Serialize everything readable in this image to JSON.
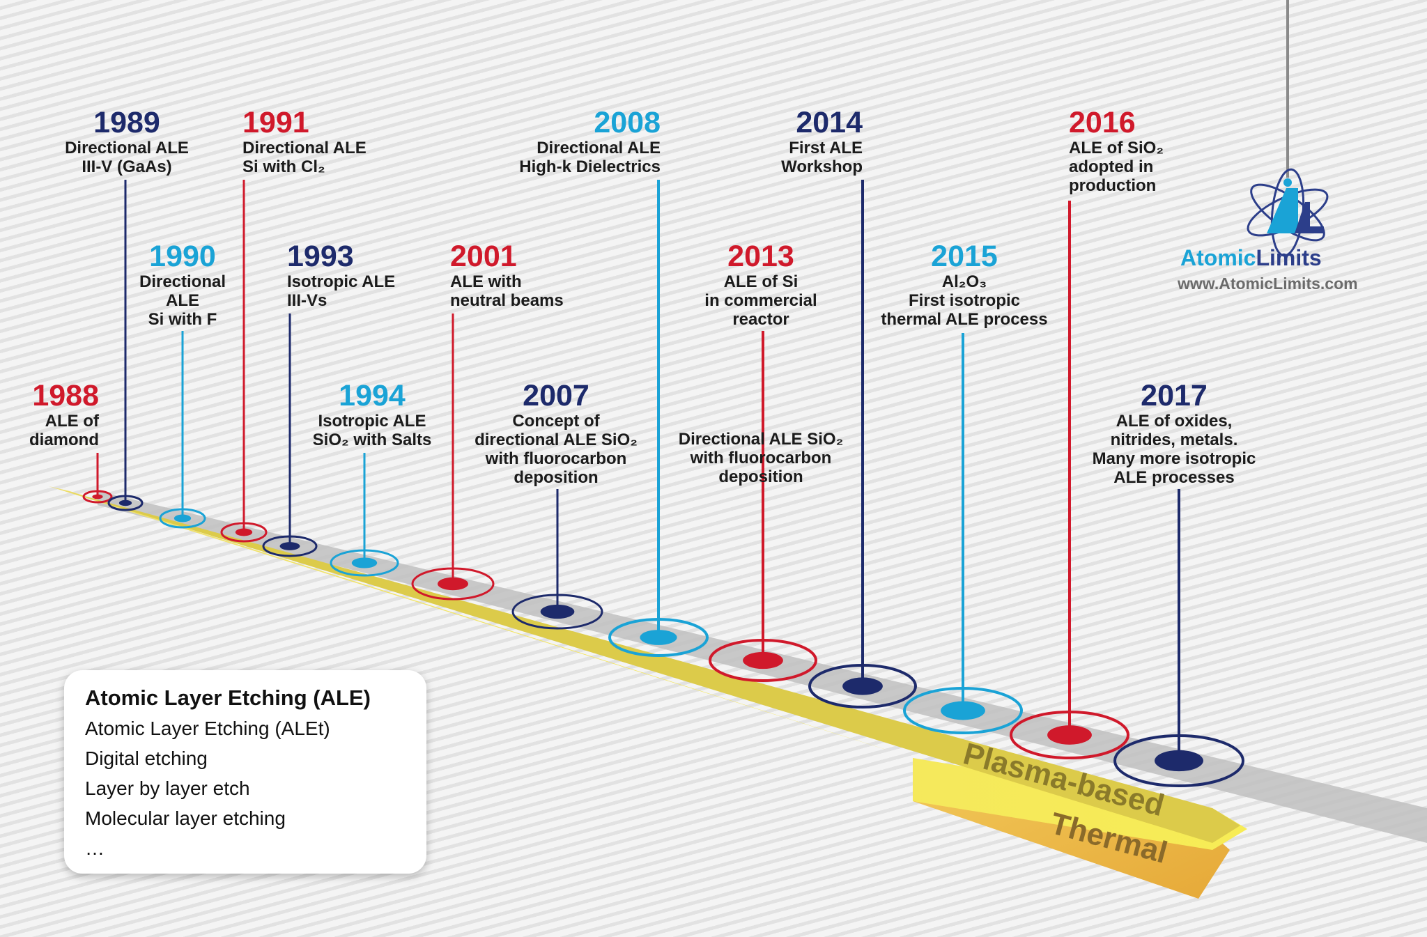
{
  "events": [
    {
      "year": "1988",
      "desc": "ALE of\ndiamond",
      "color": "red"
    },
    {
      "year": "1989",
      "desc": "Directional ALE\nIII-V (GaAs)",
      "color": "navy"
    },
    {
      "year": "1990",
      "desc": "Directional\nALE\nSi with F",
      "color": "cyan"
    },
    {
      "year": "1991",
      "desc": "Directional ALE\nSi with Cl₂",
      "color": "red"
    },
    {
      "year": "1993",
      "desc": "Isotropic ALE\nIII-Vs",
      "color": "navy"
    },
    {
      "year": "1994",
      "desc": "Isotropic ALE\nSiO₂ with Salts",
      "color": "cyan"
    },
    {
      "year": "2001",
      "desc": "ALE with\nneutral beams",
      "color": "red"
    },
    {
      "year": "2007",
      "desc": "Concept of\ndirectional ALE SiO₂\nwith fluorocarbon\ndeposition",
      "color": "navy"
    },
    {
      "year": "2008",
      "desc": "Directional ALE\nHigh-k Dielectrics",
      "color": "cyan"
    },
    {
      "year": "2013",
      "desc": "ALE of Si\nin commercial\nreactor",
      "color": "red"
    },
    {
      "year": "",
      "desc": "Directional ALE SiO₂\nwith fluorocarbon\ndeposition",
      "color": "red"
    },
    {
      "year": "2014",
      "desc": "First ALE\nWorkshop",
      "color": "navy"
    },
    {
      "year": "2015",
      "desc": "Al₂O₃\nFirst isotropic\nthermal ALE process",
      "color": "cyan"
    },
    {
      "year": "2016",
      "desc": "ALE of SiO₂\nadopted in\nproduction",
      "color": "red"
    },
    {
      "year": "2017",
      "desc": "ALE of oxides,\nnitrides, metals.\nMany more isotropic\nALE processes",
      "color": "navy"
    }
  ],
  "tracks": {
    "plasma": "Plasma-based",
    "thermal": "Thermal"
  },
  "info": {
    "title": "Atomic Layer Etching (ALE)",
    "items": [
      "Atomic Layer Etching (ALEt)",
      "Digital etching",
      "Layer by layer etch",
      "Molecular layer etching",
      "…"
    ]
  },
  "brand": {
    "part1": "Atomic",
    "part2": "Limits",
    "url": "www.AtomicLimits.com"
  },
  "colors": {
    "red": "#d0192b",
    "navy": "#1d2a6b",
    "cyan": "#1aa3d6",
    "track": "#e3d24a",
    "thermal": "#e8b23a"
  }
}
